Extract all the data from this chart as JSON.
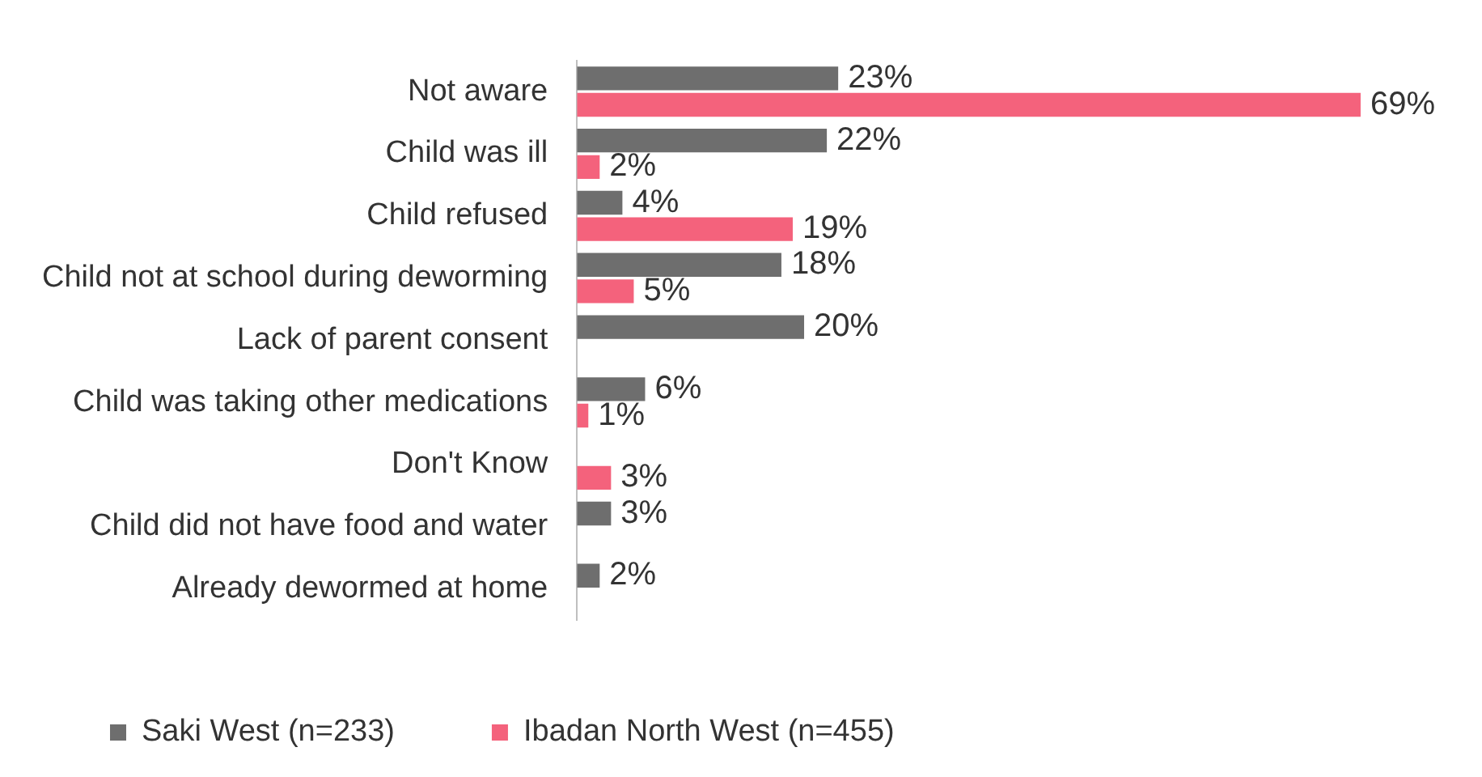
{
  "chart_data": {
    "type": "bar",
    "orientation": "horizontal",
    "categories": [
      "Not aware",
      "Child was ill",
      "Child refused",
      "Child not at school during deworming",
      "Lack of parent consent",
      "Child was taking other medications",
      "Don't Know",
      "Child did not have food and water",
      "Already dewormed at home"
    ],
    "series": [
      {
        "name": "Saki West (n=233)",
        "color": "#6e6e6e",
        "values": [
          23,
          22,
          4,
          18,
          20,
          6,
          null,
          3,
          2
        ],
        "value_labels": [
          "23%",
          "22%",
          "4%",
          "18%",
          "20%",
          "6%",
          null,
          "3%",
          "2%"
        ]
      },
      {
        "name": "Ibadan North West (n=455)",
        "color": "#f4627c",
        "values": [
          69,
          2,
          19,
          5,
          null,
          1,
          3,
          null,
          null
        ],
        "value_labels": [
          "69%",
          "2%",
          "19%",
          "5%",
          null,
          "1%",
          "3%",
          null,
          null
        ]
      }
    ],
    "grid": false,
    "legend": "bottom left",
    "tick_labels": "y"
  }
}
